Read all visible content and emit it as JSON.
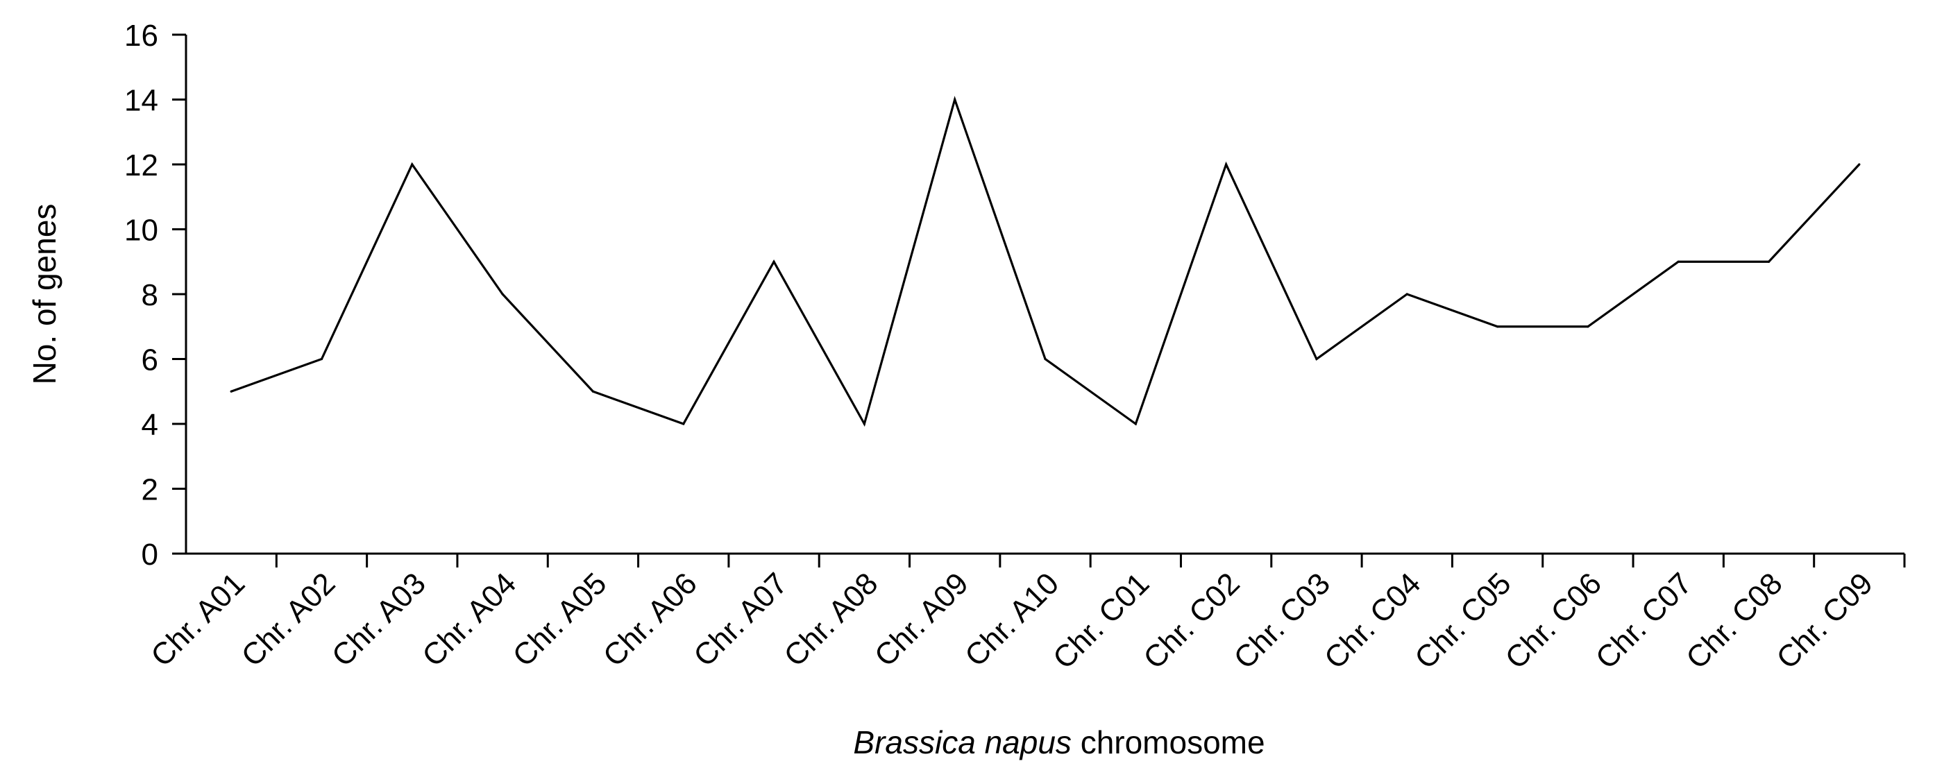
{
  "chart_data": {
    "type": "line",
    "categories": [
      "Chr. A01",
      "Chr. A02",
      "Chr. A03",
      "Chr. A04",
      "Chr. A05",
      "Chr. A06",
      "Chr. A07",
      "Chr. A08",
      "Chr. A09",
      "Chr. A10",
      "Chr. C01",
      "Chr. C02",
      "Chr. C03",
      "Chr. C04",
      "Chr. C05",
      "Chr. C06",
      "Chr. C07",
      "Chr. C08",
      "Chr. C09"
    ],
    "series": [
      {
        "values": [
          5,
          6,
          12,
          8,
          5,
          4,
          9,
          4,
          14,
          6,
          4,
          12,
          6,
          8,
          7,
          7,
          9,
          9,
          12
        ]
      }
    ],
    "xlabel": {
      "italic_part": "Brassica napus",
      "regular_part": " chromosome"
    },
    "ylabel": "No. of genes",
    "ylim": [
      0,
      16
    ],
    "yticks": [
      "0",
      "2",
      "4",
      "6",
      "8",
      "10",
      "12",
      "14",
      "16"
    ],
    "grid": false,
    "legend": "none",
    "line_color": "#000000"
  }
}
